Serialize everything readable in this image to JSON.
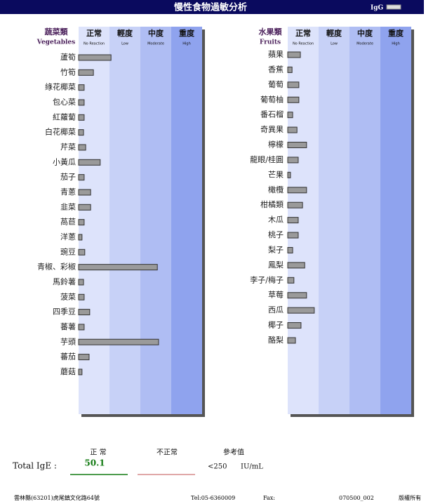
{
  "header": {
    "title": "慢性食物過敏分析",
    "badge": "IgG"
  },
  "chart_data": [
    {
      "type": "bar",
      "orientation": "horizontal",
      "group": "蔬菜類",
      "group_en": "Vegetables",
      "levels": [
        {
          "name": "正常",
          "sub": "No Reaction",
          "color": "#dde3fb"
        },
        {
          "name": "輕度",
          "sub": "Low",
          "color": "#c7d1f7"
        },
        {
          "name": "中度",
          "sub": "Moderate",
          "color": "#afbdf3"
        },
        {
          "name": "重度",
          "sub": "High",
          "color": "#8fa3ee"
        }
      ],
      "xlim": [
        0,
        4
      ],
      "color": "#9a9a9a",
      "categories": [
        "蘆筍",
        "竹筍",
        "綠花椰菜",
        "包心菜",
        "紅蘿蔔",
        "白花椰菜",
        "芹菜",
        "小黃瓜",
        "茄子",
        "青蔥",
        "韭菜",
        "萵苣",
        "洋蔥",
        "豌豆",
        "青椒、彩椒",
        "馬鈴薯",
        "菠菜",
        "四季豆",
        "蕃薯",
        "芋頭",
        "蕃茄",
        "蘑菇"
      ],
      "values": [
        1.05,
        0.48,
        0.18,
        0.18,
        0.18,
        0.16,
        0.23,
        0.7,
        0.18,
        0.39,
        0.39,
        0.18,
        0.11,
        0.2,
        2.55,
        0.16,
        0.18,
        0.36,
        0.18,
        2.59,
        0.34,
        0.11
      ]
    },
    {
      "type": "bar",
      "orientation": "horizontal",
      "group": "水果類",
      "group_en": "Fruits",
      "levels": [
        {
          "name": "正常",
          "sub": "No Reaction",
          "color": "#dde3fb"
        },
        {
          "name": "輕度",
          "sub": "Low",
          "color": "#c7d1f7"
        },
        {
          "name": "中度",
          "sub": "Moderate",
          "color": "#afbdf3"
        },
        {
          "name": "重度",
          "sub": "High",
          "color": "#8fa3ee"
        }
      ],
      "xlim": [
        0,
        4
      ],
      "color": "#9a9a9a",
      "categories": [
        "蘋果",
        "香蕉",
        "葡萄",
        "葡萄柚",
        "番石榴",
        "奇異果",
        "檸檬",
        "龍眼/桂圓",
        "芒果",
        "橄欖",
        "柑橘類",
        "木瓜",
        "桃子",
        "梨子",
        "鳳梨",
        "李子/梅子",
        "草莓",
        "西瓜",
        "椰子",
        "酪梨"
      ],
      "values": [
        0.41,
        0.14,
        0.36,
        0.36,
        0.16,
        0.3,
        0.61,
        0.34,
        0.09,
        0.61,
        0.48,
        0.34,
        0.34,
        0.16,
        0.55,
        0.2,
        0.61,
        0.86,
        0.43,
        0.25
      ]
    }
  ],
  "total_ige": {
    "label": "Total IgE :",
    "normal": "正 常",
    "value": "50.1",
    "abnormal": "不正常",
    "reference": "參考值",
    "reference_value": "<250",
    "unit": "IU/mL"
  },
  "footer": {
    "address": "雲林縣(63201)虎尾鎮文化路64號",
    "tel": "Tel:05-6360009",
    "fax": "Fax:",
    "code": "070500_002",
    "rights": "版權所有"
  }
}
